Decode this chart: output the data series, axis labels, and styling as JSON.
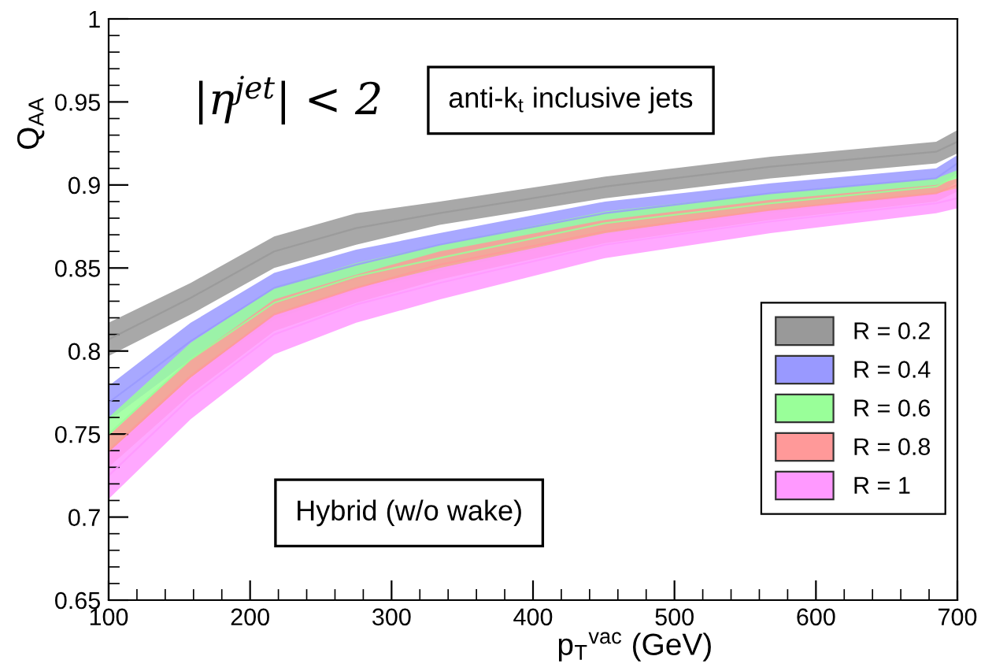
{
  "chart_data": {
    "type": "line",
    "xlabel": "p$_{T}$$^{vac}$ (GeV)",
    "ylabel": "Q$_{AA}$",
    "annotations": [
      "|η$^{jet}$| < 2",
      "anti-k$_{t}$ inclusive jets",
      "Hybrid (w/o wake)"
    ],
    "x": [
      100,
      158,
      217,
      275,
      334,
      451,
      568,
      685,
      700
    ],
    "xlim": [
      100,
      700
    ],
    "ylim": [
      0.65,
      1
    ],
    "xticks": [
      100,
      200,
      300,
      400,
      500,
      600,
      700
    ],
    "yticks": [
      0.65,
      0.7,
      0.75,
      0.8,
      0.85,
      0.9,
      0.95,
      1
    ],
    "grid": false,
    "legend": "right",
    "marker": "none",
    "line_style": "solid",
    "series": [
      {
        "name": "R = 0.2",
        "color": "#999999",
        "values": [
          0.807,
          0.832,
          0.86,
          0.874,
          0.883,
          0.899,
          0.911,
          0.92,
          0.926
        ],
        "lower": [
          0.797,
          0.822,
          0.85,
          0.864,
          0.876,
          0.892,
          0.904,
          0.913,
          0.919
        ],
        "upper": [
          0.817,
          0.841,
          0.869,
          0.883,
          0.89,
          0.905,
          0.917,
          0.926,
          0.933
        ]
      },
      {
        "name": "R = 0.4",
        "color": "#9999ff",
        "values": [
          0.769,
          0.806,
          0.838,
          0.852,
          0.864,
          0.883,
          0.895,
          0.904,
          0.913
        ],
        "lower": [
          0.758,
          0.795,
          0.828,
          0.843,
          0.857,
          0.876,
          0.888,
          0.898,
          0.907
        ],
        "upper": [
          0.779,
          0.817,
          0.847,
          0.861,
          0.871,
          0.89,
          0.901,
          0.91,
          0.918
        ]
      },
      {
        "name": "R = 0.6",
        "color": "#99ff99",
        "values": [
          0.75,
          0.795,
          0.829,
          0.845,
          0.856,
          0.877,
          0.889,
          0.899,
          0.906
        ],
        "lower": [
          0.739,
          0.784,
          0.819,
          0.836,
          0.848,
          0.87,
          0.883,
          0.894,
          0.902
        ],
        "upper": [
          0.76,
          0.805,
          0.838,
          0.853,
          0.864,
          0.884,
          0.895,
          0.904,
          0.909
        ]
      },
      {
        "name": "R = 0.8",
        "color": "#ff9999",
        "values": [
          0.74,
          0.785,
          0.822,
          0.838,
          0.852,
          0.872,
          0.885,
          0.895,
          0.9
        ],
        "lower": [
          0.73,
          0.774,
          0.812,
          0.829,
          0.843,
          0.865,
          0.879,
          0.89,
          0.896
        ],
        "upper": [
          0.749,
          0.795,
          0.831,
          0.846,
          0.86,
          0.879,
          0.891,
          0.9,
          0.904
        ]
      },
      {
        "name": "R = 1",
        "color": "#ff99ff",
        "values": [
          0.725,
          0.772,
          0.81,
          0.828,
          0.841,
          0.864,
          0.878,
          0.889,
          0.892
        ],
        "lower": [
          0.711,
          0.759,
          0.798,
          0.817,
          0.831,
          0.856,
          0.871,
          0.883,
          0.886
        ],
        "upper": [
          0.739,
          0.784,
          0.822,
          0.838,
          0.85,
          0.871,
          0.885,
          0.895,
          0.898
        ]
      }
    ]
  }
}
